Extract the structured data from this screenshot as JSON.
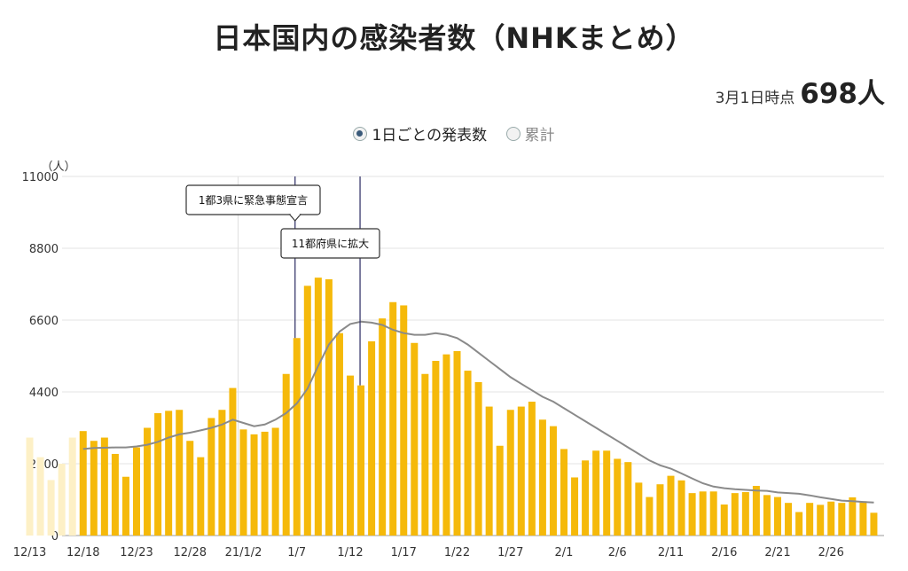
{
  "header": {
    "title": "日本国内の感染者数（NHKまとめ）",
    "asof_label": "3月1日時点",
    "asof_value": "698人"
  },
  "toggle": {
    "options": [
      {
        "label": "1日ごとの発表数",
        "selected": true
      },
      {
        "label": "累計",
        "selected": false
      }
    ]
  },
  "chart_data": {
    "type": "bar",
    "unit_label": "（人）",
    "ylim": [
      0,
      11000
    ],
    "yticks": [
      0,
      2200,
      4400,
      6600,
      8800,
      11000
    ],
    "grid": true,
    "colors": {
      "bars": "#f5b90a",
      "faded_bars": "#fdf0c6",
      "average_line": "#8a8a8a",
      "marker_line": "#3b3b6e"
    },
    "faded_start_date": "12/13",
    "x_tick_labels": [
      "12/13",
      "12/18",
      "12/23",
      "12/28",
      "21/1/2",
      "1/7",
      "1/12",
      "1/17",
      "1/22",
      "1/27",
      "2/1",
      "2/6",
      "2/11",
      "2/16",
      "2/21",
      "2/26"
    ],
    "faded_values": [
      3000,
      2400,
      1700,
      2200,
      3000
    ],
    "series": [
      {
        "type": "bar",
        "start_date": "12/18",
        "values": [
          3200,
          2900,
          3000,
          2500,
          1800,
          2700,
          3300,
          3750,
          3820,
          3850,
          2900,
          2400,
          3600,
          3850,
          4520,
          3250,
          3100,
          3180,
          3300,
          4950,
          6050,
          7650,
          7900,
          7850,
          6200,
          4900,
          4600,
          5950,
          6650,
          7150,
          7050,
          5900,
          4950,
          5350,
          5550,
          5650,
          5050,
          4700,
          3950,
          2750,
          3850,
          3950,
          4100,
          3550,
          3350,
          2650,
          1780,
          2300,
          2600,
          2600,
          2350,
          2250,
          1620,
          1180,
          1570,
          1830,
          1690,
          1300,
          1350,
          1350,
          950,
          1300,
          1330,
          1520,
          1240,
          1180,
          1000,
          720,
          1000,
          940,
          1040,
          1000,
          1170,
          1050,
          698
        ]
      },
      {
        "type": "line",
        "start_date": "12/18",
        "values": [
          2650,
          2680,
          2690,
          2700,
          2700,
          2730,
          2780,
          2870,
          3000,
          3100,
          3150,
          3220,
          3300,
          3400,
          3550,
          3450,
          3350,
          3400,
          3550,
          3750,
          4050,
          4500,
          5200,
          5850,
          6250,
          6480,
          6550,
          6520,
          6450,
          6300,
          6200,
          6150,
          6150,
          6200,
          6150,
          6050,
          5850,
          5600,
          5350,
          5100,
          4850,
          4650,
          4450,
          4250,
          4100,
          3900,
          3700,
          3500,
          3300,
          3100,
          2900,
          2700,
          2500,
          2300,
          2150,
          2050,
          1900,
          1750,
          1600,
          1500,
          1450,
          1420,
          1400,
          1380,
          1370,
          1320,
          1300,
          1280,
          1230,
          1170,
          1120,
          1070,
          1050,
          1030,
          1010
        ]
      }
    ],
    "annotations": [
      {
        "label": "1都3県に緊急事態宣言",
        "date": "1/7"
      },
      {
        "label": "11都府県に拡大",
        "date": "1/13"
      }
    ]
  }
}
